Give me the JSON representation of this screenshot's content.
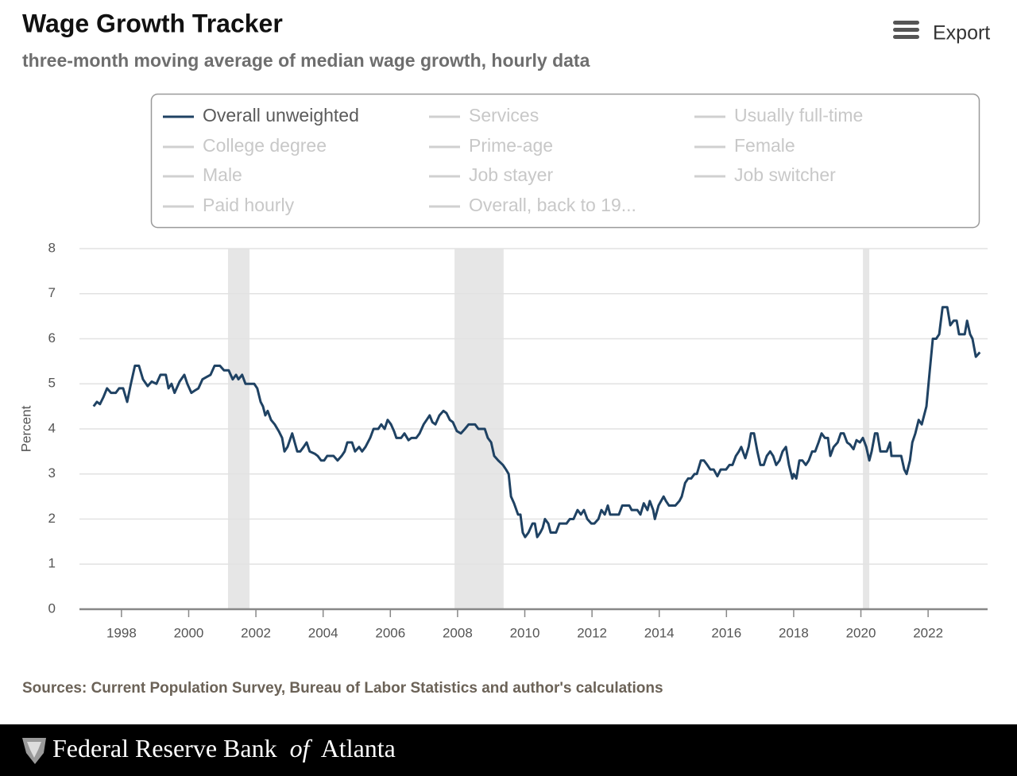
{
  "chart_data": {
    "type": "line",
    "title": "Wage Growth Tracker",
    "subtitle": "three-month moving average of median wage growth, hourly data",
    "export_label": "Export",
    "y_axis_label": "Percent",
    "source": "Sources: Current Population Survey, Bureau of Labor Statistics and author's calculations",
    "footer": [
      "Federal Reserve Bank",
      "of",
      "Atlanta"
    ],
    "xlim": [
      1996.75,
      2023.77
    ],
    "xticks": [
      1998,
      2000,
      2002,
      2004,
      2006,
      2008,
      2010,
      2012,
      2014,
      2016,
      2018,
      2020,
      2022
    ],
    "ylim": [
      0,
      8
    ],
    "yticks": [
      0,
      1,
      2,
      3,
      4,
      5,
      6,
      7,
      8
    ],
    "grid": true,
    "recession_color": "#e6e6e6",
    "recessions": [
      [
        2001.17,
        2001.81
      ],
      [
        2007.91,
        2009.37
      ],
      [
        2020.06,
        2020.25
      ]
    ],
    "series": [
      {
        "name": "Overall unweighted",
        "color": "#1f4263",
        "x": [
          1997.17,
          1997.27,
          1997.36,
          1997.46,
          1997.57,
          1997.69,
          1997.83,
          1997.93,
          1998.05,
          1998.17,
          1998.28,
          1998.4,
          1998.52,
          1998.64,
          1998.78,
          1998.9,
          1999.04,
          1999.16,
          1999.32,
          1999.4,
          1999.49,
          1999.58,
          1999.73,
          1999.87,
          1999.96,
          2000.08,
          2000.18,
          2000.29,
          2000.41,
          2000.53,
          2000.65,
          2000.77,
          2000.93,
          2001.05,
          2001.19,
          2001.31,
          2001.41,
          2001.48,
          2001.59,
          2001.69,
          2001.83,
          2001.95,
          2002.04,
          2002.14,
          2002.21,
          2002.28,
          2002.35,
          2002.45,
          2002.56,
          2002.68,
          2002.78,
          2002.85,
          2002.94,
          2003.08,
          2003.23,
          2003.32,
          2003.42,
          2003.51,
          2003.6,
          2003.75,
          2003.84,
          2003.94,
          2004.03,
          2004.12,
          2004.31,
          2004.43,
          2004.55,
          2004.64,
          2004.72,
          2004.86,
          2004.95,
          2005.07,
          2005.16,
          2005.26,
          2005.4,
          2005.5,
          2005.64,
          2005.73,
          2005.83,
          2005.92,
          2006.02,
          2006.11,
          2006.18,
          2006.32,
          2006.42,
          2006.54,
          2006.63,
          2006.77,
          2006.87,
          2006.99,
          2007.08,
          2007.17,
          2007.25,
          2007.34,
          2007.46,
          2007.58,
          2007.67,
          2007.77,
          2007.86,
          2007.98,
          2008.1,
          2008.22,
          2008.33,
          2008.52,
          2008.62,
          2008.81,
          2008.9,
          2009.0,
          2009.09,
          2009.21,
          2009.28,
          2009.35,
          2009.44,
          2009.52,
          2009.59,
          2009.68,
          2009.8,
          2009.87,
          2009.94,
          2010.01,
          2010.11,
          2010.23,
          2010.3,
          2010.37,
          2010.46,
          2010.53,
          2010.6,
          2010.7,
          2010.77,
          2010.93,
          2011.03,
          2011.24,
          2011.34,
          2011.45,
          2011.57,
          2011.67,
          2011.76,
          2011.86,
          2011.98,
          2012.07,
          2012.19,
          2012.28,
          2012.38,
          2012.47,
          2012.54,
          2012.71,
          2012.8,
          2012.9,
          2013.11,
          2013.18,
          2013.35,
          2013.44,
          2013.54,
          2013.65,
          2013.72,
          2013.82,
          2013.87,
          2013.98,
          2014.13,
          2014.2,
          2014.29,
          2014.48,
          2014.6,
          2014.67,
          2014.77,
          2014.86,
          2014.95,
          2015.05,
          2015.12,
          2015.24,
          2015.33,
          2015.43,
          2015.52,
          2015.62,
          2015.73,
          2015.83,
          2015.99,
          2016.09,
          2016.18,
          2016.28,
          2016.37,
          2016.44,
          2016.56,
          2016.66,
          2016.73,
          2016.82,
          2016.92,
          2017.01,
          2017.11,
          2017.2,
          2017.3,
          2017.39,
          2017.48,
          2017.58,
          2017.67,
          2017.77,
          2017.86,
          2017.96,
          2018.0,
          2018.08,
          2018.17,
          2018.26,
          2018.36,
          2018.45,
          2018.55,
          2018.64,
          2018.74,
          2018.83,
          2018.93,
          2019.02,
          2019.09,
          2019.19,
          2019.31,
          2019.4,
          2019.49,
          2019.59,
          2019.68,
          2019.78,
          2019.87,
          2019.97,
          2020.06,
          2020.16,
          2020.25,
          2020.32,
          2020.42,
          2020.49,
          2020.58,
          2020.68,
          2020.77,
          2020.87,
          2020.91,
          2021.1,
          2021.2,
          2021.29,
          2021.36,
          2021.46,
          2021.53,
          2021.62,
          2021.72,
          2021.81,
          2021.88,
          2021.95,
          2022.05,
          2022.14,
          2022.24,
          2022.33,
          2022.43,
          2022.57,
          2022.66,
          2022.76,
          2022.85,
          2022.92,
          2023.09,
          2023.16,
          2023.25,
          2023.32,
          2023.42,
          2023.54
        ],
        "values": [
          4.5,
          4.6,
          4.55,
          4.7,
          4.9,
          4.8,
          4.8,
          4.9,
          4.9,
          4.6,
          5.0,
          5.4,
          5.4,
          5.1,
          4.95,
          5.05,
          5.0,
          5.2,
          5.2,
          4.9,
          5.0,
          4.8,
          5.05,
          5.2,
          5.0,
          4.8,
          4.85,
          4.9,
          5.1,
          5.15,
          5.2,
          5.4,
          5.4,
          5.3,
          5.3,
          5.1,
          5.2,
          5.1,
          5.2,
          5.0,
          5.0,
          5.0,
          4.9,
          4.6,
          4.5,
          4.3,
          4.4,
          4.2,
          4.1,
          3.95,
          3.8,
          3.5,
          3.6,
          3.9,
          3.5,
          3.5,
          3.6,
          3.7,
          3.5,
          3.45,
          3.4,
          3.3,
          3.3,
          3.4,
          3.4,
          3.3,
          3.4,
          3.5,
          3.7,
          3.7,
          3.5,
          3.6,
          3.5,
          3.6,
          3.8,
          4.0,
          4.0,
          4.1,
          4.0,
          4.2,
          4.1,
          3.95,
          3.8,
          3.8,
          3.9,
          3.75,
          3.8,
          3.8,
          3.9,
          4.1,
          4.2,
          4.3,
          4.15,
          4.1,
          4.3,
          4.4,
          4.35,
          4.2,
          4.15,
          3.95,
          3.9,
          4.0,
          4.1,
          4.1,
          4.0,
          4.0,
          3.8,
          3.7,
          3.4,
          3.3,
          3.25,
          3.2,
          3.1,
          3.0,
          2.5,
          2.35,
          2.1,
          2.1,
          1.7,
          1.6,
          1.7,
          1.9,
          1.9,
          1.6,
          1.7,
          1.8,
          2.0,
          1.9,
          1.7,
          1.7,
          1.9,
          1.9,
          2.0,
          2.0,
          2.2,
          2.1,
          2.2,
          2.0,
          1.9,
          1.9,
          2.0,
          2.2,
          2.1,
          2.3,
          2.1,
          2.1,
          2.1,
          2.3,
          2.3,
          2.2,
          2.2,
          2.1,
          2.35,
          2.2,
          2.4,
          2.2,
          2.0,
          2.3,
          2.5,
          2.4,
          2.3,
          2.3,
          2.4,
          2.5,
          2.8,
          2.9,
          2.9,
          3.0,
          3.0,
          3.3,
          3.3,
          3.2,
          3.1,
          3.1,
          2.95,
          3.1,
          3.1,
          3.2,
          3.2,
          3.4,
          3.5,
          3.6,
          3.35,
          3.6,
          3.9,
          3.9,
          3.5,
          3.2,
          3.2,
          3.4,
          3.5,
          3.4,
          3.2,
          3.3,
          3.5,
          3.6,
          3.2,
          2.9,
          3.0,
          2.9,
          3.3,
          3.3,
          3.2,
          3.3,
          3.5,
          3.5,
          3.7,
          3.9,
          3.8,
          3.8,
          3.4,
          3.6,
          3.7,
          3.9,
          3.9,
          3.7,
          3.65,
          3.55,
          3.75,
          3.7,
          3.8,
          3.6,
          3.3,
          3.5,
          3.9,
          3.9,
          3.5,
          3.5,
          3.5,
          3.7,
          3.4,
          3.4,
          3.4,
          3.1,
          3.0,
          3.3,
          3.7,
          3.9,
          4.2,
          4.1,
          4.3,
          4.5,
          5.3,
          6.0,
          6.0,
          6.1,
          6.7,
          6.7,
          6.3,
          6.4,
          6.4,
          6.1,
          6.1,
          6.4,
          6.1,
          6.0,
          5.6,
          5.7
        ]
      }
    ],
    "inactive_color": "#d0d0d0",
    "hidden_series": [
      {
        "name": "Services"
      },
      {
        "name": "Usually full-time"
      },
      {
        "name": "College degree"
      },
      {
        "name": "Prime-age"
      },
      {
        "name": "Female"
      },
      {
        "name": "Male"
      },
      {
        "name": "Job stayer"
      },
      {
        "name": "Job switcher"
      },
      {
        "name": "Paid hourly"
      },
      {
        "name": "Overall, back to 19..."
      }
    ]
  }
}
